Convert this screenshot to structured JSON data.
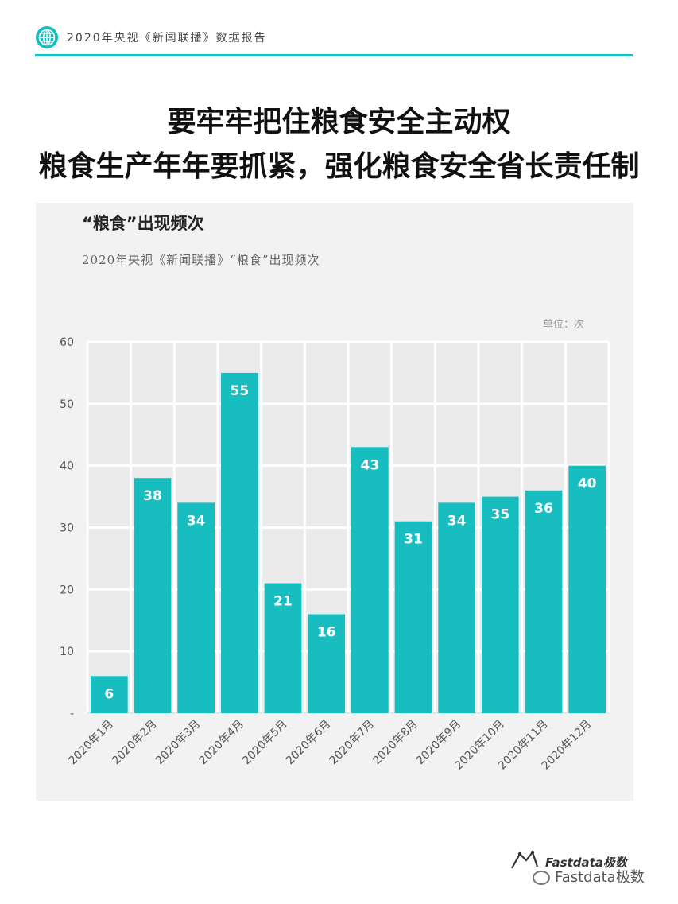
{
  "header": {
    "text": "2020年央视《新闻联播》数据报告",
    "accent_color": "#17bdbf",
    "icon": "globe-icon"
  },
  "title_lines": [
    "要牢牢把住粮食安全主动权",
    "粮食生产年年要抓紧，强化粮食安全省长责任制"
  ],
  "chart_data": {
    "type": "bar",
    "title": "“粮食”出现频次",
    "subtitle": "2020年央视《新闻联播》“粮食”出现频次",
    "unit": "单位：次",
    "categories": [
      "2020年1月",
      "2020年2月",
      "2020年3月",
      "2020年4月",
      "2020年5月",
      "2020年6月",
      "2020年7月",
      "2020年8月",
      "2020年9月",
      "2020年10月",
      "2020年11月",
      "2020年12月"
    ],
    "values": [
      6,
      38,
      34,
      55,
      21,
      16,
      43,
      31,
      34,
      35,
      36,
      40
    ],
    "y_ticks": [
      "-",
      "10",
      "20",
      "30",
      "40",
      "50",
      "60"
    ],
    "ylim": [
      0,
      60
    ],
    "grid": true,
    "bar_color": "#17bdbf",
    "label_color": "#ffffff"
  },
  "footer": {
    "logo_text": "Fastdata极数",
    "watermark": "Fastdata极数"
  }
}
